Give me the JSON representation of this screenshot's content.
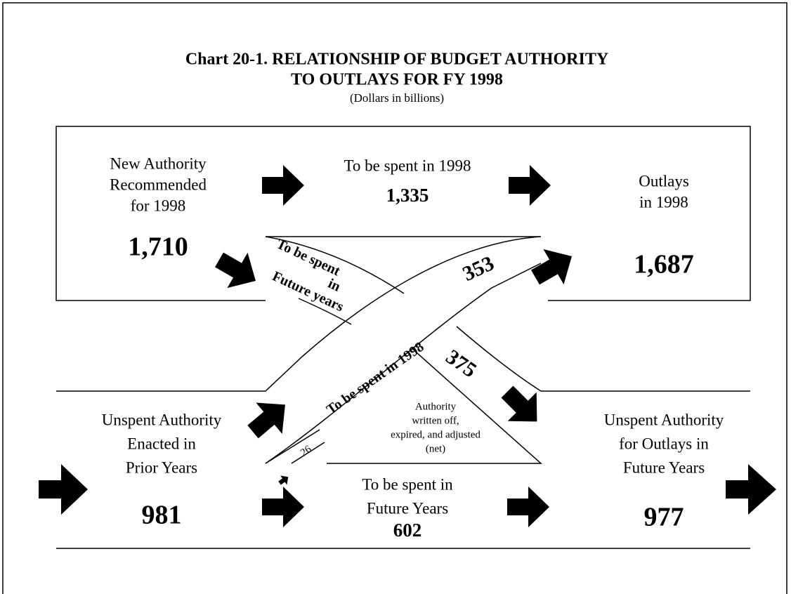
{
  "title": [
    "Chart 20-1.  RELATIONSHIP  OF  BUDGET  AUTHORITY",
    "TO  OUTLAYS  FOR  FY 1998"
  ],
  "subtitle": "(Dollars in billions)",
  "nodes": [
    {
      "label": [
        "New Authority",
        "Recommended",
        "for 1998"
      ],
      "value": "1,710"
    },
    {
      "label": [
        "To be spent in 1998"
      ],
      "value": "1,335"
    },
    {
      "label": [
        "Outlays",
        "in 1998"
      ],
      "value": "1,687"
    },
    {
      "label": [
        "Unspent Authority",
        "Enacted in",
        "Prior Years"
      ],
      "value": "981"
    },
    {
      "label": [
        "To be spent in",
        "Future Years"
      ],
      "value": "602"
    },
    {
      "label": [
        "Unspent Authority",
        "for Outlays in",
        "Future Years"
      ],
      "value": "977"
    }
  ],
  "flows": [
    {
      "label": [
        "To be spent",
        "in",
        "Future years"
      ],
      "value": "375"
    },
    {
      "label": [
        "To  be spent in 1998"
      ],
      "value": "353"
    },
    {
      "label": [
        "Authority",
        "written off,",
        "expired, and adjusted",
        "(net)"
      ],
      "value": "26"
    }
  ]
}
